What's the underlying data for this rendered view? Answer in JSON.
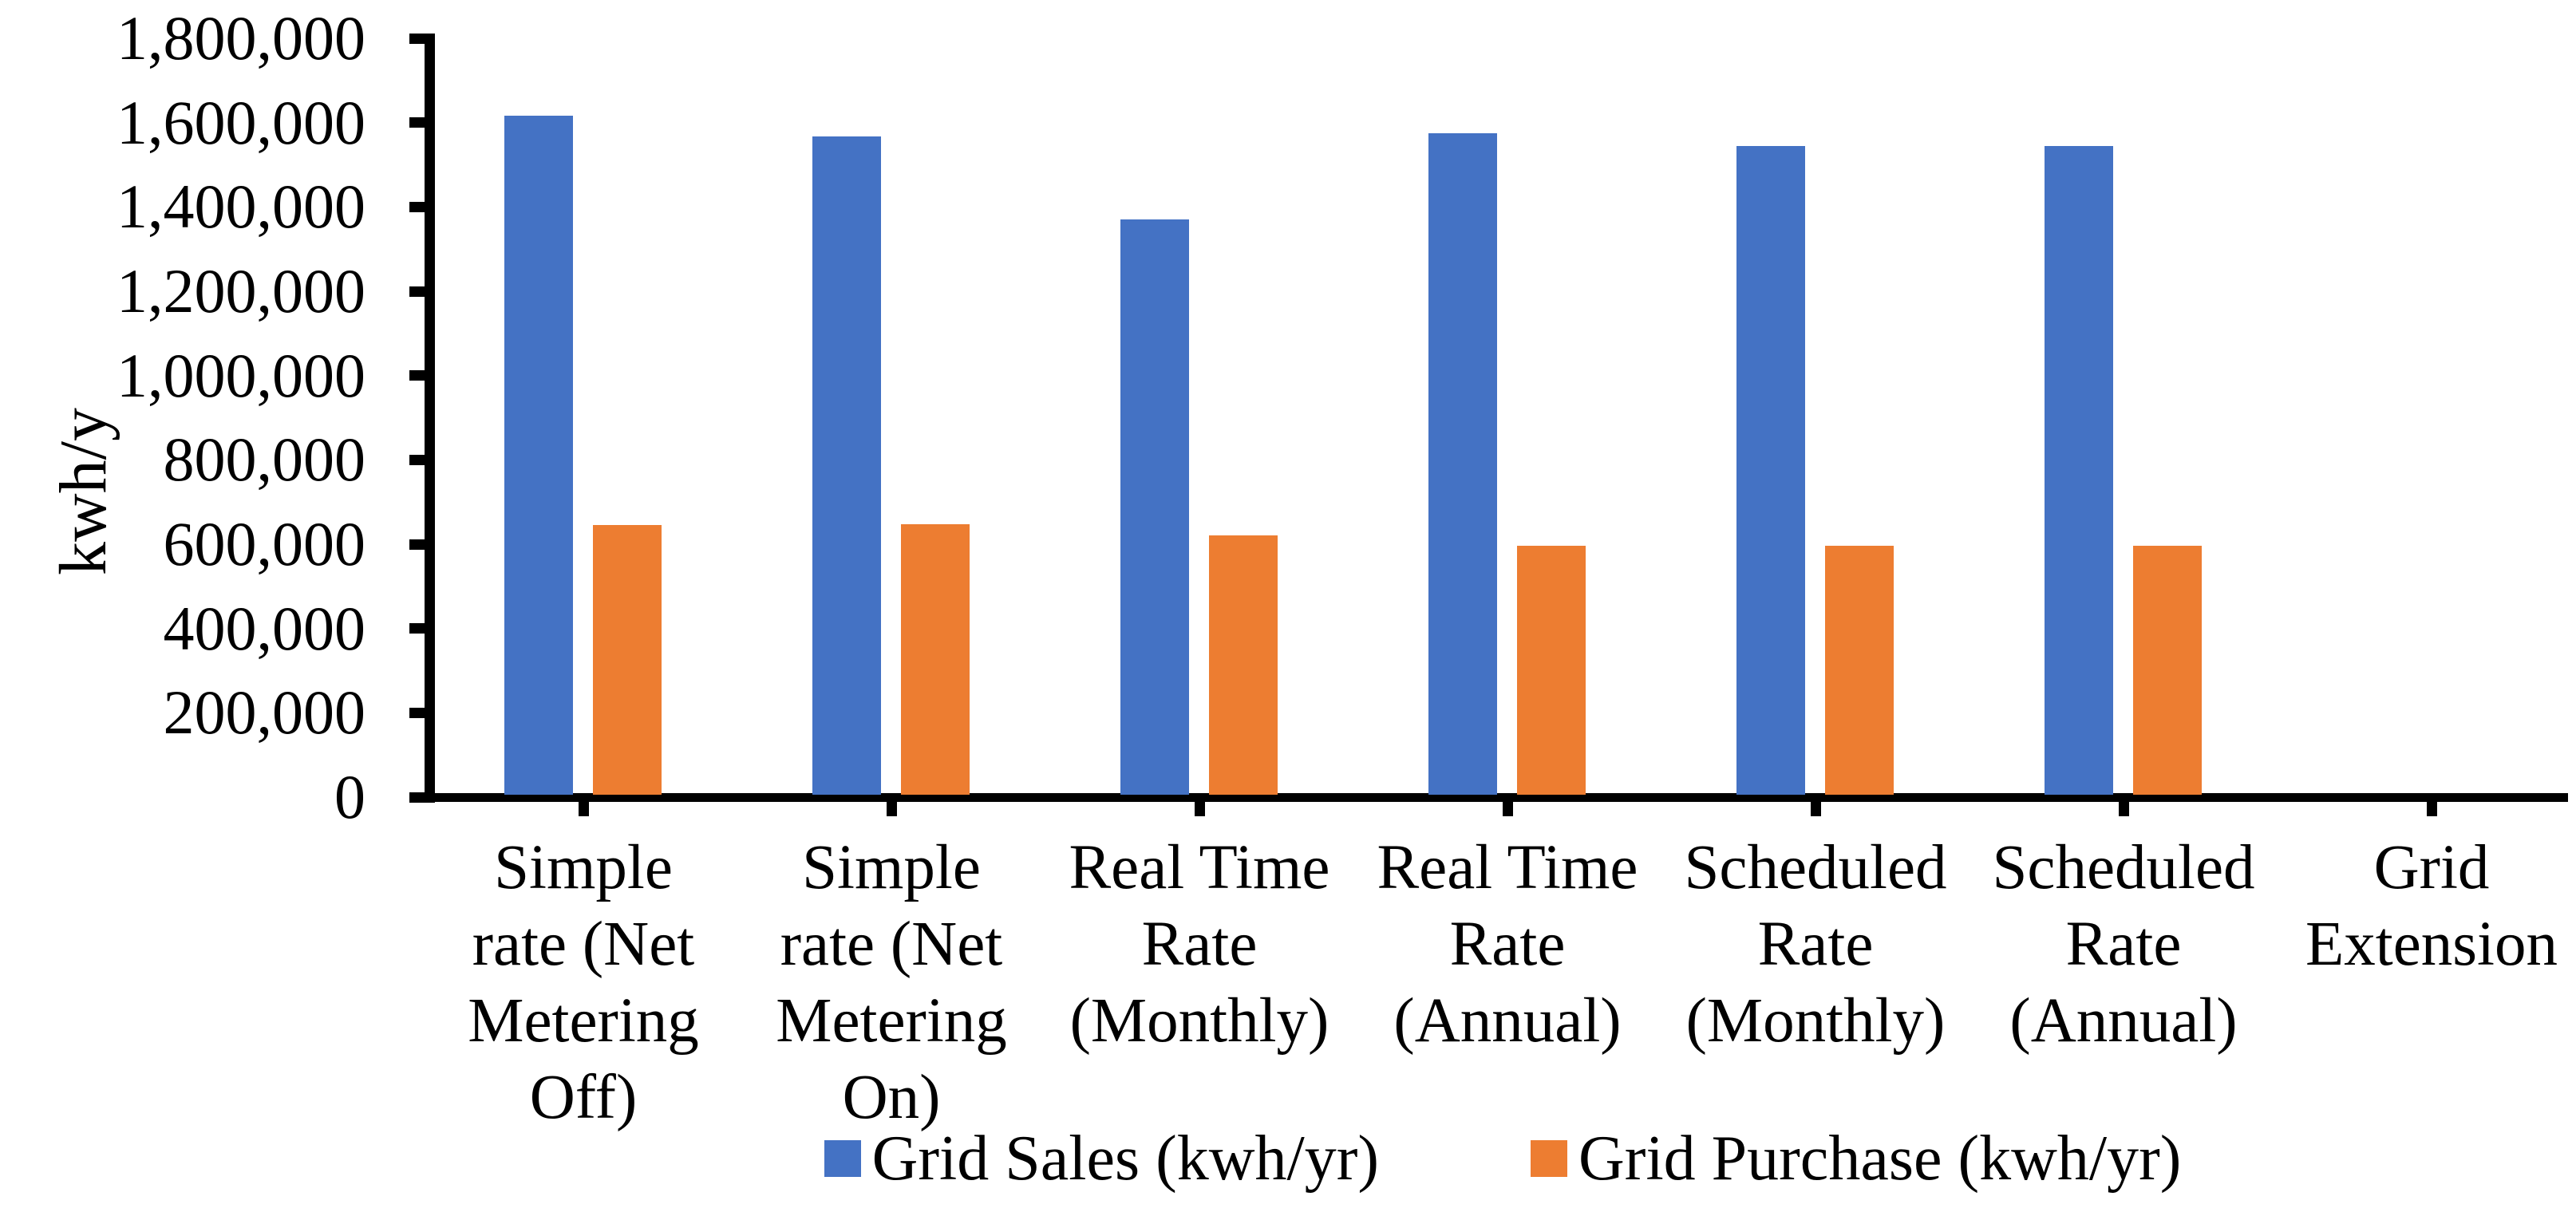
{
  "chart_data": {
    "type": "bar",
    "title": "",
    "xlabel": "",
    "ylabel": "kwh/y",
    "categories": [
      "Simple\nrate (Net\nMetering\nOff)",
      "Simple\nrate (Net\nMetering\nOn)",
      "Real Time\nRate\n(Monthly)",
      "Real Time\nRate\n(Annual)",
      "Scheduled\nRate\n(Monthly)",
      "Scheduled\nRate\n(Annual)",
      "Grid\nExtension"
    ],
    "series": [
      {
        "name": "Grid Sales (kwh/yr)",
        "color": "#4472C4",
        "values": [
          1616000,
          1568000,
          1370000,
          1574000,
          1544000,
          1544000,
          0
        ]
      },
      {
        "name": "Grid Purchase (kwh/yr)",
        "color": "#ED7D31",
        "values": [
          645000,
          648000,
          621000,
          596000,
          596000,
          596000,
          0
        ]
      }
    ],
    "ylim": [
      0,
      1800000
    ],
    "ytick_step": 200000,
    "ytick_labels": [
      "1,800,000",
      "1,600,000",
      "1,400,000",
      "1,200,000",
      "1,000,000",
      "800,000",
      "600,000",
      "400,000",
      "200,000",
      "0"
    ],
    "grid": false,
    "legend_position": "bottom",
    "axis_color": "#000000",
    "background_color": "#FFFFFF"
  }
}
